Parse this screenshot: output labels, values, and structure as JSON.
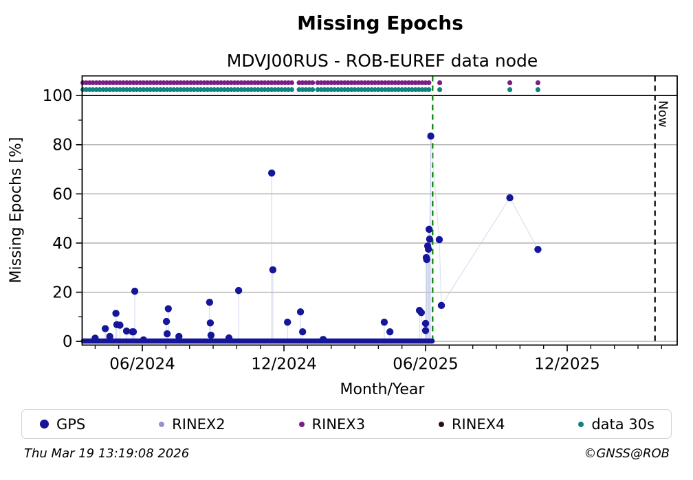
{
  "header": {
    "title": "Missing Epochs",
    "subtitle": "MDVJ00RUS - ROB-EUREF data node"
  },
  "footer": {
    "timestamp": "Thu Mar 19 13:19:08 2026",
    "copyright": "©GNSS@ROB"
  },
  "legend": [
    {
      "label": "GPS",
      "color": "#16169b",
      "size": 13
    },
    {
      "label": "RINEX2",
      "color": "#9a90c8",
      "size": 8
    },
    {
      "label": "RINEX3",
      "color": "#7a1f87",
      "size": 8
    },
    {
      "label": "RINEX4",
      "color": "#2a0d20",
      "size": 8
    },
    {
      "label": "data 30s",
      "color": "#0f8282",
      "size": 8
    }
  ],
  "chart_data": {
    "type": "scatter",
    "title": "Missing Epochs",
    "subtitle": "MDVJ00RUS - ROB-EUREF data node",
    "xlabel": "Month/Year",
    "ylabel": "Missing Epochs [%]",
    "x_unit": "months since 2024-01",
    "x_range": [
      2.45,
      27.66
    ],
    "y_range": [
      -1.5,
      108.0
    ],
    "x_major_ticks": [
      {
        "m": 5,
        "label": "06/2024"
      },
      {
        "m": 11,
        "label": "12/2024"
      },
      {
        "m": 17,
        "label": "06/2025"
      },
      {
        "m": 23,
        "label": "12/2025"
      }
    ],
    "y_major_ticks": [
      0,
      20,
      40,
      60,
      80,
      100
    ],
    "y_minor_ticks": [
      10,
      30,
      50,
      70,
      90
    ],
    "grid_y_values": [
      0,
      20,
      40,
      60,
      80
    ],
    "hundred_line_y": 100,
    "grid_color": "#aaaaaa",
    "stem_color": "rgba(175,185,225,0.5)",
    "connect_color": "rgba(190,198,232,0.55)",
    "connect_after_m": 16.99,
    "series": {
      "gps": {
        "name": "GPS",
        "color": "#16169b",
        "zero_band": [
          2.5,
          17.28
        ],
        "points": [
          [
            3.0,
            1.3
          ],
          [
            3.43,
            5.2
          ],
          [
            3.62,
            2.0
          ],
          [
            3.88,
            11.4
          ],
          [
            3.92,
            6.8
          ],
          [
            4.05,
            6.6
          ],
          [
            4.33,
            4.2
          ],
          [
            4.58,
            3.9
          ],
          [
            4.62,
            3.9
          ],
          [
            4.68,
            20.4
          ],
          [
            5.05,
            0.6
          ],
          [
            6.02,
            8.1
          ],
          [
            6.05,
            3.1
          ],
          [
            6.1,
            13.3
          ],
          [
            6.55,
            2.0
          ],
          [
            7.85,
            15.9
          ],
          [
            7.88,
            7.5
          ],
          [
            7.91,
            2.5
          ],
          [
            8.67,
            1.4
          ],
          [
            9.08,
            20.7
          ],
          [
            10.48,
            68.5
          ],
          [
            10.53,
            29.1
          ],
          [
            11.15,
            7.8
          ],
          [
            11.7,
            12.0
          ],
          [
            11.79,
            3.9
          ],
          [
            12.66,
            0.8
          ],
          [
            15.25,
            7.8
          ],
          [
            15.49,
            3.9
          ],
          [
            16.74,
            12.6
          ],
          [
            16.82,
            11.7
          ],
          [
            17.0,
            7.3
          ],
          [
            17.0,
            4.4
          ],
          [
            17.03,
            34.1
          ],
          [
            17.05,
            33.3
          ],
          [
            17.09,
            38.8
          ],
          [
            17.12,
            37.5
          ],
          [
            17.15,
            45.6
          ],
          [
            17.17,
            41.6
          ],
          [
            17.22,
            83.5
          ],
          [
            17.58,
            41.4
          ],
          [
            17.67,
            14.6
          ],
          [
            20.57,
            58.4
          ],
          [
            21.76,
            37.4
          ]
        ]
      },
      "rinex3_row": {
        "name": "RINEX3",
        "color": "#7a1f87",
        "y": 105.2,
        "segments": [
          [
            2.48,
            11.44
          ],
          [
            11.64,
            12.31
          ],
          [
            12.43,
            17.26
          ]
        ],
        "points": [
          17.6,
          20.57,
          21.76
        ]
      },
      "data30s_row": {
        "name": "data 30s",
        "color": "#0f8282",
        "y": 102.4,
        "segments": [
          [
            2.48,
            11.44
          ],
          [
            11.64,
            12.31
          ],
          [
            12.43,
            17.26
          ]
        ],
        "points": [
          17.6,
          20.57,
          21.76
        ]
      }
    },
    "vlines": [
      {
        "m": 17.3,
        "color": "#008000",
        "style": "dashed",
        "label": ""
      },
      {
        "m": 26.72,
        "color": "#000000",
        "style": "dashed",
        "label": "Now"
      }
    ]
  }
}
